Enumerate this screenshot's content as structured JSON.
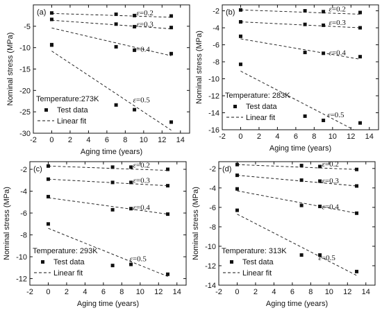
{
  "chart_data": [
    {
      "type": "scatter",
      "panel_label": "(a)",
      "xlabel": "Aging time  (years)",
      "ylabel": "Nominal stress (MPa)",
      "xlim": [
        -2,
        15
      ],
      "ylim": [
        -30,
        0
      ],
      "xticks": [
        -2,
        0,
        2,
        4,
        6,
        8,
        10,
        12,
        14
      ],
      "yticks": [
        -30,
        -25,
        -20,
        -15,
        -10,
        -5
      ],
      "temperature_label": "Temperature:273K",
      "legend": {
        "marker_label": "Test data",
        "line_label": "Linear fit",
        "position": "lower-left"
      },
      "series": [
        {
          "name": "ε=0.2",
          "x": [
            0,
            7,
            9,
            13
          ],
          "y": [
            -1.9,
            -2.2,
            -2.5,
            -2.6
          ],
          "fit": [
            [
              0,
              -2.0
            ],
            [
              13,
              -2.9
            ]
          ]
        },
        {
          "name": "ε=0.3",
          "x": [
            0,
            7,
            9,
            13
          ],
          "y": [
            -3.4,
            -4.5,
            -5.1,
            -5.3
          ],
          "fit": [
            [
              0,
              -3.6
            ],
            [
              13,
              -5.6
            ]
          ]
        },
        {
          "name": "ε=0.4",
          "x": [
            0,
            7,
            9,
            13
          ],
          "y": [
            -9.3,
            -9.8,
            -10.6,
            -11.4
          ],
          "fit": [
            [
              0,
              -5.4
            ],
            [
              13,
              -11.9
            ]
          ]
        },
        {
          "name": "ε=0.5",
          "x": [
            0,
            7,
            9,
            13
          ],
          "y": [
            -9.4,
            -23.4,
            -24.5,
            -27.4
          ],
          "fit": [
            [
              0,
              -10.8
            ],
            [
              13,
              -29.3
            ]
          ]
        }
      ]
    },
    {
      "type": "scatter",
      "panel_label": "(b)",
      "xlabel": "Aging time  (years)",
      "ylabel": "Nominal stress (MPa)",
      "xlim": [
        -2,
        15
      ],
      "ylim": [
        -16,
        -1.3
      ],
      "xticks": [
        -2,
        0,
        2,
        4,
        6,
        8,
        10,
        12,
        14
      ],
      "yticks": [
        -16,
        -14,
        -12,
        -10,
        -8,
        -6,
        -4,
        -2
      ],
      "temperature_label": "Temperature: 283K",
      "legend": {
        "marker_label": "Test data",
        "line_label": "Linear fit",
        "position": "lower-left"
      },
      "series": [
        {
          "name": "ε=0.2",
          "x": [
            0,
            7,
            9,
            13
          ],
          "y": [
            -1.9,
            -2.0,
            -2.1,
            -2.2
          ],
          "fit": [
            [
              0,
              -1.9
            ],
            [
              13,
              -2.4
            ]
          ]
        },
        {
          "name": "ε=0.3",
          "x": [
            0,
            7,
            9,
            13
          ],
          "y": [
            -3.3,
            -3.6,
            -3.7,
            -4.0
          ],
          "fit": [
            [
              0,
              -3.3
            ],
            [
              13,
              -4.0
            ]
          ]
        },
        {
          "name": "ε=0.4",
          "x": [
            0,
            7,
            9,
            13
          ],
          "y": [
            -5.0,
            -6.9,
            -7.0,
            -7.4
          ],
          "fit": [
            [
              0,
              -5.3
            ],
            [
              13,
              -7.7
            ]
          ]
        },
        {
          "name": "ε=0.5",
          "x": [
            0,
            7,
            9,
            13
          ],
          "y": [
            -8.3,
            -14.4,
            -14.9,
            -15.2
          ],
          "fit": [
            [
              0,
              -9.1
            ],
            [
              12.3,
              -16
            ]
          ]
        }
      ]
    },
    {
      "type": "scatter",
      "panel_label": "(c)",
      "xlabel": "Aging time  (years)",
      "ylabel": "Nominal stress (MPa)",
      "xlim": [
        -2,
        15
      ],
      "ylim": [
        -12.6,
        -1.3
      ],
      "xticks": [
        -2,
        0,
        2,
        4,
        6,
        8,
        10,
        12,
        14
      ],
      "yticks": [
        -12,
        -10,
        -8,
        -6,
        -4,
        -2
      ],
      "temperature_label": "Temperature: 293K",
      "legend": {
        "marker_label": "Test data",
        "line_label": "Linear fit",
        "position": "lower-left"
      },
      "series": [
        {
          "name": "ε=0.2",
          "x": [
            0,
            7,
            9,
            13
          ],
          "y": [
            -1.7,
            -1.8,
            -1.8,
            -2.0
          ],
          "fit": [
            [
              0,
              -1.7
            ],
            [
              13,
              -2.1
            ]
          ]
        },
        {
          "name": "ε=0.3",
          "x": [
            0,
            7,
            9,
            13
          ],
          "y": [
            -2.9,
            -3.2,
            -3.2,
            -3.5
          ],
          "fit": [
            [
              0,
              -2.9
            ],
            [
              13,
              -3.5
            ]
          ]
        },
        {
          "name": "ε=0.4",
          "x": [
            0,
            7,
            9,
            13
          ],
          "y": [
            -4.5,
            -5.7,
            -5.6,
            -6.1
          ],
          "fit": [
            [
              0,
              -4.6
            ],
            [
              13,
              -6.1
            ]
          ]
        },
        {
          "name": "ε=0.5",
          "x": [
            0,
            7,
            9,
            13
          ],
          "y": [
            -7.0,
            -10.8,
            -10.7,
            -11.6
          ],
          "fit": [
            [
              0,
              -7.4
            ],
            [
              13,
              -11.8
            ]
          ]
        }
      ]
    },
    {
      "type": "scatter",
      "panel_label": "(d)",
      "xlabel": "Aging time  (years)",
      "ylabel": "Nominal stress (MPa)",
      "xlim": [
        -2,
        15
      ],
      "ylim": [
        -14,
        -1.3
      ],
      "xticks": [
        -2,
        0,
        2,
        4,
        6,
        8,
        10,
        12,
        14
      ],
      "yticks": [
        -14,
        -12,
        -10,
        -8,
        -6,
        -4,
        -2
      ],
      "temperature_label": "Temperature: 313K",
      "legend": {
        "marker_label": "Test data",
        "line_label": "Linear fit",
        "position": "lower-left"
      },
      "series": [
        {
          "name": "ε=0.2",
          "x": [
            0,
            7,
            9,
            13
          ],
          "y": [
            -1.6,
            -1.7,
            -1.8,
            -2.1
          ],
          "fit": [
            [
              0,
              -1.6
            ],
            [
              13,
              -2.1
            ]
          ]
        },
        {
          "name": "ε=0.3",
          "x": [
            0,
            7,
            9,
            13
          ],
          "y": [
            -2.7,
            -3.2,
            -3.3,
            -3.8
          ],
          "fit": [
            [
              0,
              -2.7
            ],
            [
              13,
              -3.8
            ]
          ]
        },
        {
          "name": "ε=0.4",
          "x": [
            0,
            7,
            9,
            13
          ],
          "y": [
            -4.1,
            -5.8,
            -5.9,
            -6.6
          ],
          "fit": [
            [
              0,
              -4.3
            ],
            [
              13,
              -6.6
            ]
          ]
        },
        {
          "name": "ε=0.5",
          "x": [
            0,
            7,
            9,
            13
          ],
          "y": [
            -6.3,
            -10.9,
            -10.9,
            -12.6
          ],
          "fit": [
            [
              0,
              -6.7
            ],
            [
              13,
              -13.0
            ]
          ]
        }
      ]
    }
  ]
}
